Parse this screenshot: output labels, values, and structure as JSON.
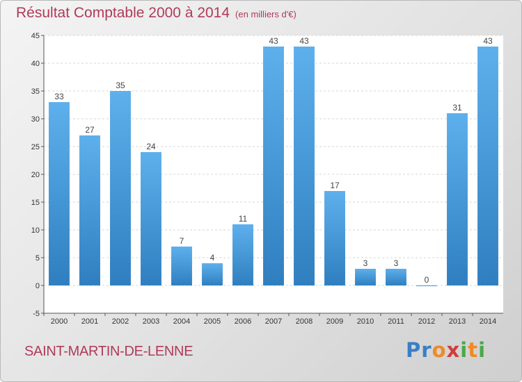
{
  "chart_data": {
    "type": "bar",
    "title": "Résultat Comptable 2000 à 2014",
    "subtitle": "(en milliers d'€)",
    "categories": [
      "2000",
      "2001",
      "2002",
      "2003",
      "2004",
      "2005",
      "2006",
      "2007",
      "2008",
      "2009",
      "2010",
      "2011",
      "2012",
      "2013",
      "2014"
    ],
    "values": [
      33,
      27,
      35,
      24,
      7,
      4,
      11,
      43,
      43,
      17,
      3,
      3,
      0,
      31,
      43
    ],
    "ylim": [
      -5,
      45
    ],
    "yticks": [
      -5,
      0,
      5,
      10,
      15,
      20,
      25,
      30,
      35,
      40,
      45
    ],
    "grid": true,
    "bar_color": "#4a9ee0",
    "xlabel": "",
    "ylabel": ""
  },
  "footer": {
    "commune": "SAINT-MARTIN-DE-LENNE",
    "brand": "Proxiti"
  }
}
